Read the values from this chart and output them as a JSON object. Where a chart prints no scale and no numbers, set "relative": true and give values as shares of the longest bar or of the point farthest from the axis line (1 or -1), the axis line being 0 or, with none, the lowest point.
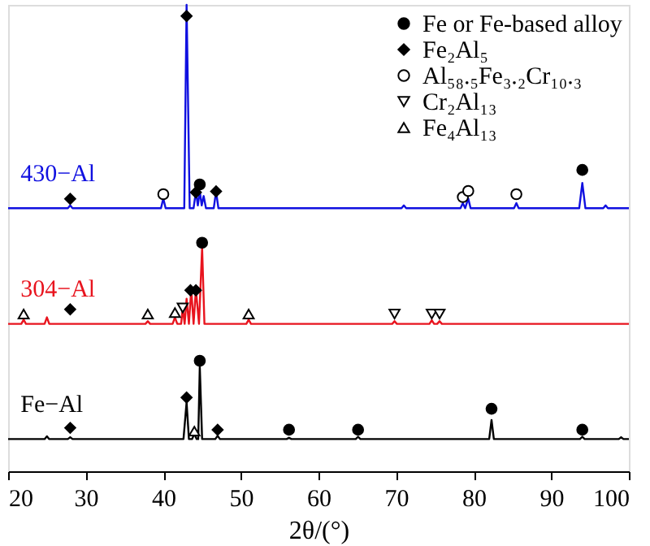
{
  "chart_data": {
    "type": "line",
    "relative": true,
    "xlabel": "2θ/(°)",
    "xlim": [
      20,
      100
    ],
    "xticks": [
      20,
      30,
      40,
      50,
      60,
      70,
      80,
      90,
      100
    ],
    "grid": false,
    "legend": "top right",
    "line_style": "solid",
    "series": [
      {
        "name": "430−Al",
        "color": "#1010e0",
        "x": [
          20,
          27.7,
          28,
          28.3,
          39.7,
          40,
          40.3,
          42.7,
          43,
          43.4,
          43.9,
          44.2,
          44.45,
          44.7,
          44.95,
          45.2,
          45.5,
          46.5,
          46.8,
          47.1,
          70.7,
          71,
          71.3,
          78.3,
          78.6,
          78.9,
          79.3,
          79.6,
          85.2,
          85.5,
          85.8,
          93.6,
          94,
          94.4,
          96.7,
          97,
          97.3,
          100
        ],
        "values": [
          0.564,
          0.564,
          0.57,
          0.564,
          0.564,
          0.585,
          0.564,
          0.564,
          1.0,
          0.564,
          0.564,
          0.6,
          0.57,
          0.6,
          0.57,
          0.59,
          0.564,
          0.564,
          0.6,
          0.564,
          0.564,
          0.57,
          0.564,
          0.564,
          0.575,
          0.564,
          0.585,
          0.564,
          0.564,
          0.575,
          0.564,
          0.564,
          0.618,
          0.564,
          0.564,
          0.57,
          0.564,
          0.564
        ]
      },
      {
        "name": "304−Al",
        "color": "#e8141e",
        "x": [
          20,
          21.7,
          22,
          22.3,
          24.7,
          25,
          25.3,
          37.7,
          38,
          38.3,
          41.2,
          41.5,
          41.8,
          42.3,
          42.5,
          42.75,
          43,
          43.3,
          43.6,
          43.9,
          44.2,
          44.6,
          45,
          45.3,
          50.7,
          51,
          51.3,
          69.5,
          69.8,
          70.1,
          74.3,
          74.6,
          74.9,
          75.3,
          75.6,
          75.9,
          100
        ],
        "values": [
          0.316,
          0.316,
          0.325,
          0.316,
          0.316,
          0.33,
          0.316,
          0.316,
          0.322,
          0.316,
          0.316,
          0.33,
          0.316,
          0.316,
          0.35,
          0.316,
          0.37,
          0.316,
          0.39,
          0.316,
          0.39,
          0.316,
          0.48,
          0.316,
          0.316,
          0.325,
          0.316,
          0.316,
          0.322,
          0.316,
          0.316,
          0.324,
          0.316,
          0.316,
          0.322,
          0.316,
          0.316
        ]
      },
      {
        "name": "Fe−Al",
        "color": "#000000",
        "x": [
          20,
          24.7,
          25,
          25.3,
          27.7,
          28,
          28.3,
          42.6,
          43,
          43.3,
          43.7,
          44,
          44.3,
          44.5,
          44.7,
          45,
          46.7,
          47,
          47.3,
          55.9,
          56.2,
          56.5,
          64.8,
          65.1,
          65.4,
          82,
          82.3,
          82.6,
          93.7,
          94,
          94.3,
          98.7,
          99,
          99.3,
          100
        ],
        "values": [
          0.069,
          0.069,
          0.075,
          0.069,
          0.069,
          0.073,
          0.069,
          0.069,
          0.148,
          0.069,
          0.069,
          0.08,
          0.069,
          0.069,
          0.225,
          0.069,
          0.069,
          0.076,
          0.069,
          0.069,
          0.072,
          0.069,
          0.069,
          0.074,
          0.069,
          0.069,
          0.11,
          0.069,
          0.069,
          0.074,
          0.069,
          0.069,
          0.073,
          0.069,
          0.069
        ]
      },
      {
        "name": "Fe or Fe-based alloy",
        "type": "scatter",
        "marker": "circle",
        "color": "#000000",
        "x": [
          44.7,
          94,
          45,
          44.7,
          56.2,
          65.1,
          82.3,
          94
        ],
        "values": [
          0.615,
          0.646,
          0.49,
          0.237,
          0.089,
          0.089,
          0.134,
          0.089
        ]
      },
      {
        "name": "Fe₂Al₅",
        "type": "scatter",
        "marker": "diamond",
        "color": "#000000",
        "x": [
          28,
          43,
          44.2,
          46.8,
          28,
          43.5,
          44.2,
          28,
          43,
          47
        ],
        "values": [
          0.584,
          0.976,
          0.598,
          0.6,
          0.347,
          0.388,
          0.388,
          0.093,
          0.158,
          0.089
        ]
      },
      {
        "name": "Al₅₈.₅Fe₃.₂Cr₁₀.₃",
        "type": "scatter",
        "marker": "circle-open",
        "color": "#000000",
        "x": [
          40,
          78.6,
          79.3,
          85.5
        ],
        "values": [
          0.594,
          0.588,
          0.601,
          0.594
        ]
      },
      {
        "name": "Cr₂Al₁₃",
        "type": "scatter",
        "marker": "triangle-down-open",
        "color": "#000000",
        "x": [
          42.5,
          69.8,
          74.6,
          75.6
        ],
        "values": [
          0.35,
          0.337,
          0.337,
          0.337
        ]
      },
      {
        "name": "Fe₄Al₁₃",
        "type": "scatter",
        "marker": "triangle-up-open",
        "color": "#000000",
        "x": [
          22,
          38,
          41.5,
          51,
          44
        ],
        "values": [
          0.337,
          0.337,
          0.34,
          0.337,
          0.086
        ]
      }
    ]
  }
}
